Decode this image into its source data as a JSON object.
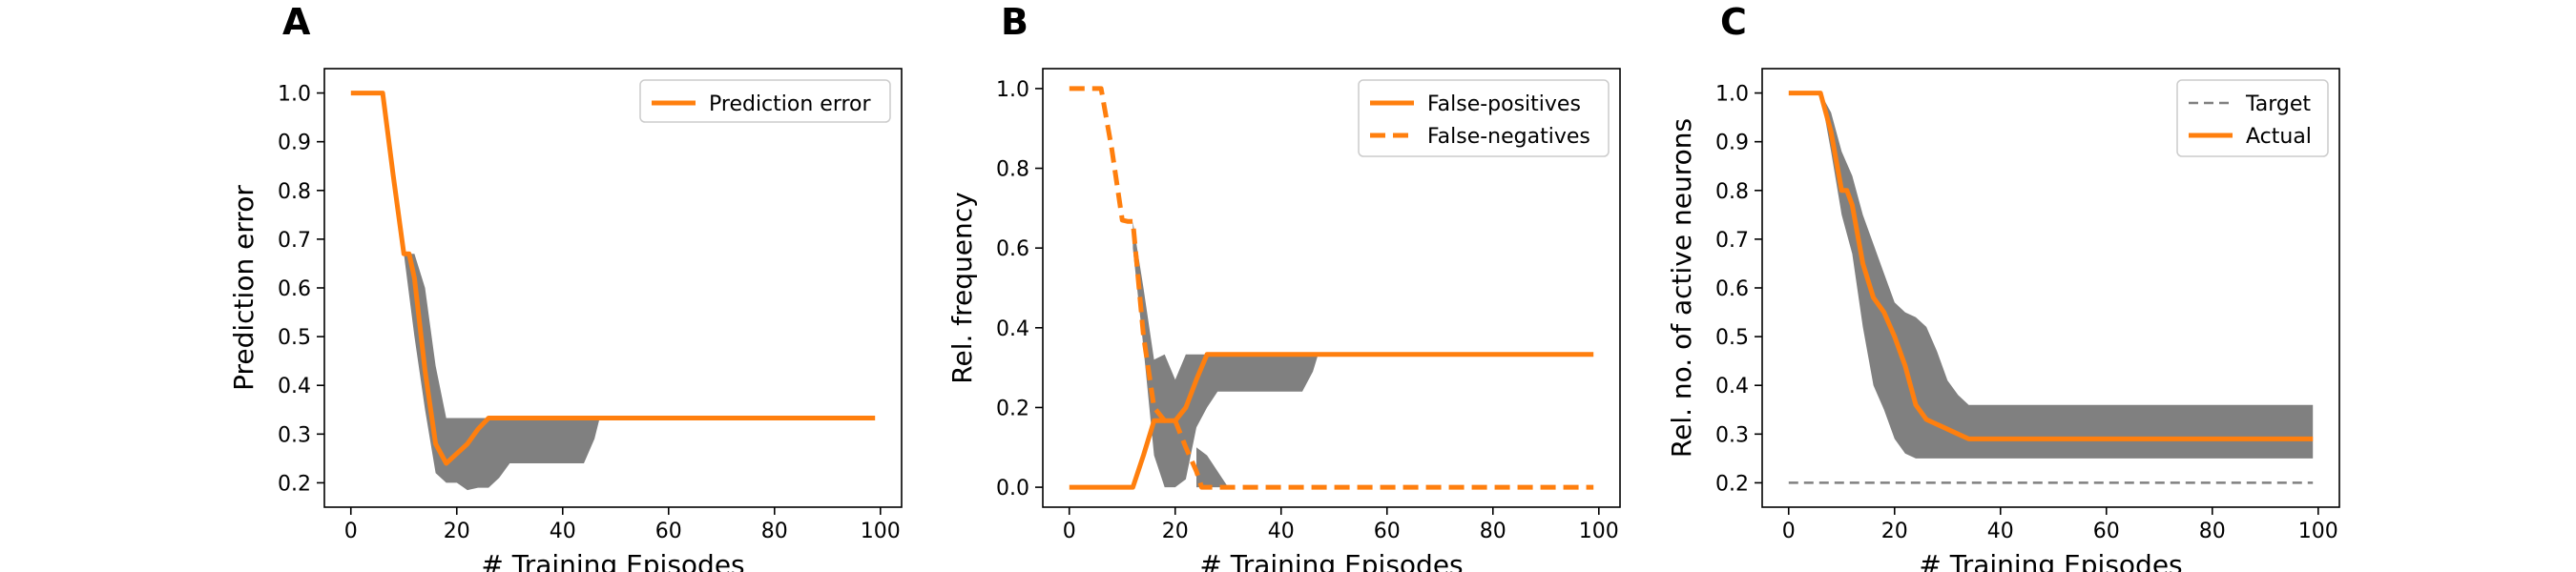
{
  "chart_data": [
    {
      "type": "line",
      "panel_label": "A",
      "xlabel": "# Training Episodes",
      "ylabel": "Prediction error",
      "xlim": [
        -5,
        104
      ],
      "ylim": [
        0.15,
        1.05
      ],
      "xticks": [
        0,
        20,
        40,
        60,
        80,
        100
      ],
      "yticks": [
        0.2,
        0.3,
        0.4,
        0.5,
        0.6,
        0.7,
        0.8,
        0.9,
        1.0
      ],
      "ytick_format": 1,
      "legend_position": "upper-right",
      "series": [
        {
          "name": "Prediction error",
          "style": "solid",
          "color": "#ff7f0e",
          "x": [
            0,
            2,
            4,
            6,
            8,
            10,
            11,
            12,
            14,
            16,
            18,
            20,
            22,
            24,
            26,
            30,
            40,
            50,
            60,
            80,
            99
          ],
          "y": [
            1.0,
            1.0,
            1.0,
            1.0,
            0.83,
            0.67,
            0.67,
            0.62,
            0.43,
            0.28,
            0.24,
            0.26,
            0.28,
            0.31,
            0.333,
            0.333,
            0.333,
            0.333,
            0.333,
            0.333,
            0.333
          ]
        }
      ],
      "bands": [
        {
          "color": "#808080",
          "x": [
            0,
            2,
            4,
            6,
            8,
            10,
            12,
            14,
            16,
            18,
            20,
            22,
            24,
            26,
            28,
            30,
            35,
            40,
            44,
            46,
            47,
            50,
            60,
            80,
            99
          ],
          "lower": [
            1.0,
            1.0,
            1.0,
            1.0,
            0.83,
            0.67,
            0.5,
            0.35,
            0.22,
            0.2,
            0.2,
            0.185,
            0.19,
            0.19,
            0.21,
            0.24,
            0.24,
            0.24,
            0.24,
            0.29,
            0.333,
            0.333,
            0.333,
            0.333,
            0.333
          ],
          "upper": [
            1.0,
            1.0,
            1.0,
            1.0,
            0.83,
            0.67,
            0.67,
            0.6,
            0.44,
            0.333,
            0.333,
            0.333,
            0.333,
            0.333,
            0.333,
            0.333,
            0.333,
            0.333,
            0.333,
            0.333,
            0.333,
            0.333,
            0.333,
            0.333,
            0.333
          ]
        }
      ]
    },
    {
      "type": "line",
      "panel_label": "B",
      "xlabel": "# Training Episodes",
      "ylabel": "Rel. frequency",
      "xlim": [
        -5,
        104
      ],
      "ylim": [
        -0.05,
        1.05
      ],
      "xticks": [
        0,
        20,
        40,
        60,
        80,
        100
      ],
      "yticks": [
        0.0,
        0.2,
        0.4,
        0.6,
        0.8,
        1.0
      ],
      "ytick_format": 1,
      "legend_position": "upper-right",
      "series": [
        {
          "name": "False-positives",
          "style": "solid",
          "color": "#ff7f0e",
          "x": [
            0,
            4,
            8,
            12,
            14,
            16,
            18,
            20,
            22,
            24,
            26,
            30,
            40,
            50,
            60,
            80,
            99
          ],
          "y": [
            0.0,
            0.0,
            0.0,
            0.0,
            0.08,
            0.167,
            0.167,
            0.167,
            0.2,
            0.27,
            0.333,
            0.333,
            0.333,
            0.333,
            0.333,
            0.333,
            0.333
          ]
        },
        {
          "name": "False-negatives",
          "style": "dashed",
          "color": "#ff7f0e",
          "x": [
            0,
            4,
            6,
            8,
            10,
            11,
            12,
            14,
            16,
            18,
            20,
            22,
            24,
            25,
            26,
            30,
            40,
            60,
            80,
            99
          ],
          "y": [
            1.0,
            1.0,
            1.0,
            0.85,
            0.67,
            0.667,
            0.667,
            0.38,
            0.2,
            0.167,
            0.167,
            0.1,
            0.04,
            0.0,
            0.0,
            0.0,
            0.0,
            0.0,
            0.0,
            0.0
          ]
        }
      ],
      "bands": [
        {
          "color": "#808080",
          "x": [
            12,
            14,
            16,
            18,
            20,
            22,
            24,
            26,
            28,
            30,
            35,
            40,
            44,
            46,
            47
          ],
          "lower": [
            0.6,
            0.35,
            0.08,
            0.0,
            0.0,
            0.02,
            0.15,
            0.2,
            0.24,
            0.24,
            0.24,
            0.24,
            0.24,
            0.29,
            0.333
          ],
          "upper": [
            0.667,
            0.5,
            0.32,
            0.333,
            0.27,
            0.333,
            0.333,
            0.333,
            0.333,
            0.333,
            0.333,
            0.333,
            0.333,
            0.333,
            0.333
          ]
        },
        {
          "color": "#808080",
          "x": [
            24,
            26,
            28,
            30,
            32
          ],
          "lower": [
            0.0,
            0.0,
            0.0,
            0.0,
            0.0
          ],
          "upper": [
            0.1,
            0.08,
            0.04,
            0.0,
            0.0
          ]
        }
      ]
    },
    {
      "type": "line",
      "panel_label": "C",
      "xlabel": "# Training Episodes",
      "ylabel": "Rel. no. of active neurons",
      "xlim": [
        -5,
        104
      ],
      "ylim": [
        0.15,
        1.05
      ],
      "xticks": [
        0,
        20,
        40,
        60,
        80,
        100
      ],
      "yticks": [
        0.2,
        0.3,
        0.4,
        0.5,
        0.6,
        0.7,
        0.8,
        0.9,
        1.0
      ],
      "ytick_format": 1,
      "legend_position": "upper-right",
      "series": [
        {
          "name": "Target",
          "style": "dashed-thin",
          "color": "#808080",
          "x": [
            0,
            99
          ],
          "y": [
            0.2,
            0.2
          ]
        },
        {
          "name": "Actual",
          "style": "solid",
          "color": "#ff7f0e",
          "x": [
            0,
            2,
            4,
            6,
            8,
            10,
            11,
            12,
            14,
            16,
            18,
            20,
            22,
            24,
            26,
            28,
            30,
            32,
            34,
            36,
            40,
            50,
            60,
            80,
            99
          ],
          "y": [
            1.0,
            1.0,
            1.0,
            1.0,
            0.92,
            0.8,
            0.8,
            0.77,
            0.65,
            0.58,
            0.55,
            0.5,
            0.44,
            0.36,
            0.33,
            0.32,
            0.31,
            0.3,
            0.29,
            0.29,
            0.29,
            0.29,
            0.29,
            0.29,
            0.29
          ]
        }
      ],
      "bands": [
        {
          "color": "#808080",
          "x": [
            0,
            2,
            4,
            6,
            8,
            10,
            12,
            14,
            16,
            18,
            20,
            22,
            24,
            26,
            28,
            30,
            32,
            34,
            36,
            40,
            50,
            60,
            80,
            99
          ],
          "lower": [
            1.0,
            1.0,
            1.0,
            1.0,
            0.88,
            0.75,
            0.67,
            0.52,
            0.4,
            0.35,
            0.29,
            0.26,
            0.25,
            0.25,
            0.25,
            0.25,
            0.25,
            0.25,
            0.25,
            0.25,
            0.25,
            0.25,
            0.25,
            0.25
          ],
          "upper": [
            1.0,
            1.0,
            1.0,
            1.0,
            0.96,
            0.88,
            0.83,
            0.75,
            0.69,
            0.63,
            0.57,
            0.55,
            0.54,
            0.52,
            0.47,
            0.41,
            0.38,
            0.36,
            0.36,
            0.36,
            0.36,
            0.36,
            0.36,
            0.36
          ]
        }
      ]
    }
  ]
}
